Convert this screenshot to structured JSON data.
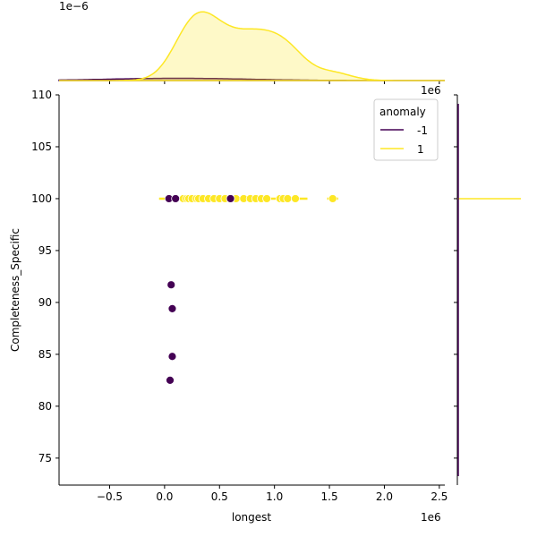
{
  "chart_data": {
    "type": "scatter",
    "title": "",
    "xlabel": "longest",
    "ylabel": "Completeness_Specific",
    "x_offset_label": "1e6",
    "y_offset_label": "1e6",
    "top_marginal_offset_label": "1e−6",
    "xlim": [
      -0.96,
      2.55
    ],
    "ylim": [
      72.4,
      110
    ],
    "x_ticks": [
      -0.5,
      0.0,
      0.5,
      1.0,
      1.5,
      2.0,
      2.5
    ],
    "x_tick_labels": [
      "−0.5",
      "0.0",
      "0.5",
      "1.0",
      "1.5",
      "2.0",
      "2.5"
    ],
    "y_ticks": [
      75,
      80,
      85,
      90,
      95,
      100,
      105,
      110
    ],
    "y_tick_labels": [
      "75",
      "80",
      "85",
      "90",
      "95",
      "100",
      "105",
      "110"
    ],
    "legend": {
      "title": "anomaly",
      "placement": "top-right",
      "entries": [
        "-1",
        "1"
      ]
    },
    "colors": {
      "-1": "#440154",
      "1": "#fde725"
    },
    "series": [
      {
        "name": "1",
        "x": [
          0.17,
          0.2,
          0.22,
          0.25,
          0.29,
          0.31,
          0.35,
          0.4,
          0.45,
          0.5,
          0.55,
          0.65,
          0.72,
          0.78,
          0.83,
          0.88,
          0.93,
          1.05,
          1.08,
          1.12,
          1.19,
          1.53
        ],
        "y": [
          100,
          100,
          100,
          100,
          100,
          100,
          100,
          100,
          100,
          100,
          100,
          100,
          100,
          100,
          100,
          100,
          100,
          100,
          100,
          100,
          100,
          100
        ]
      },
      {
        "name": "-1",
        "x": [
          0.04,
          0.1,
          0.6,
          0.06,
          0.07,
          0.07,
          0.05
        ],
        "y": [
          100,
          100,
          100,
          91.7,
          89.4,
          84.8,
          82.5
        ]
      }
    ]
  }
}
